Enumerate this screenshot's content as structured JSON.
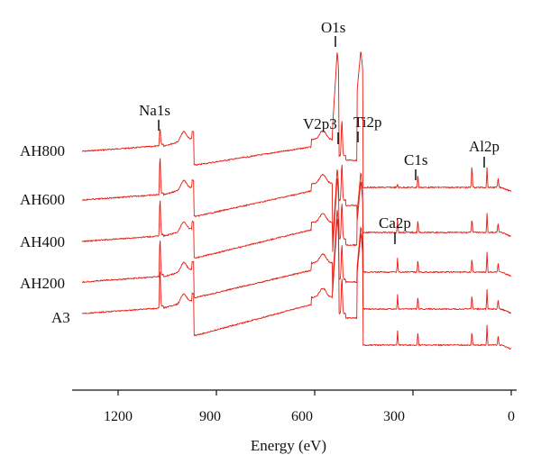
{
  "chart_data": {
    "type": "line",
    "title": "",
    "xlabel": "Energy (eV)",
    "ylabel": "",
    "xlim": [
      1330,
      -10
    ],
    "x_reversed": true,
    "xticks": [
      1200,
      900,
      600,
      300,
      0
    ],
    "xtick_labels": [
      "1200",
      "900",
      "600",
      "300",
      "0"
    ],
    "grid": false,
    "line_color": "#e8190f",
    "series": [
      {
        "name": "AH800",
        "baseline": 0
      },
      {
        "name": "AH600",
        "baseline": 1
      },
      {
        "name": "AH400",
        "baseline": 2
      },
      {
        "name": "AH200",
        "baseline": 3
      },
      {
        "name": "A3",
        "baseline": 4
      }
    ],
    "peaks": [
      {
        "label": "Na1s",
        "energy": 1072
      },
      {
        "label": "O1s",
        "energy": 531
      },
      {
        "label": "V2p3",
        "energy": 517
      },
      {
        "label": "Ti2p",
        "energy": 459
      },
      {
        "label": "Ca2p",
        "energy": 347
      },
      {
        "label": "C1s",
        "energy": 285
      },
      {
        "label": "Al2p",
        "energy": 74
      }
    ]
  }
}
